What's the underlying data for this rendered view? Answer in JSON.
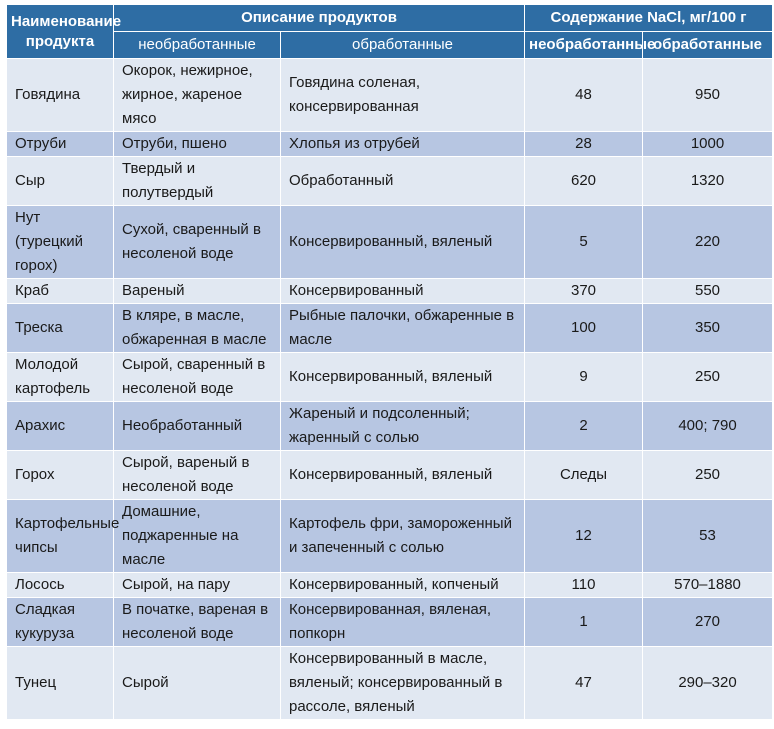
{
  "header": {
    "name": "Наименование продукта",
    "description": "Описание продуктов",
    "nacl": "Содержание NaCl, мг/100 г",
    "raw": "необработанные",
    "processed": "обработанные"
  },
  "rows": [
    {
      "name": "Говядина",
      "raw": "Окорок, нежирное, жирное, жареное мясо",
      "processed": "Говядина соленая, консервированная",
      "nacl_raw": "48",
      "nacl_processed": "950"
    },
    {
      "name": "Отруби",
      "raw": "Отруби, пшено",
      "processed": "Хлопья из отрубей",
      "nacl_raw": "28",
      "nacl_processed": "1000"
    },
    {
      "name": "Сыр",
      "raw": "Твердый и полутвердый",
      "processed": "Обработанный",
      "nacl_raw": "620",
      "nacl_processed": "1320"
    },
    {
      "name": "Нут (турецкий горох)",
      "raw": "Сухой, сваренный в несоленой воде",
      "processed": "Консервированный, вяленый",
      "nacl_raw": "5",
      "nacl_processed": "220"
    },
    {
      "name": "Краб",
      "raw": "Вареный",
      "processed": "Консервированный",
      "nacl_raw": "370",
      "nacl_processed": "550"
    },
    {
      "name": "Треска",
      "raw": "В кляре, в масле, обжаренная в масле",
      "processed": "Рыбные палочки, обжаренные в масле",
      "nacl_raw": "100",
      "nacl_processed": "350"
    },
    {
      "name": "Молодой картофель",
      "raw": "Сырой, сваренный в несоленой воде",
      "processed": "Консервированный, вяленый",
      "nacl_raw": "9",
      "nacl_processed": "250"
    },
    {
      "name": "Арахис",
      "raw": "Необработанный",
      "processed": "Жареный и подсоленный; жаренный с солью",
      "nacl_raw": "2",
      "nacl_processed": "400; 790"
    },
    {
      "name": "Горох",
      "raw": "Сырой, вареный в несоленой воде",
      "processed": "Консервированный, вяленый",
      "nacl_raw": "Следы",
      "nacl_processed": "250"
    },
    {
      "name": "Картофельные чипсы",
      "raw": "Домашние, поджаренные на масле",
      "processed": "Картофель фри, замороженный и запеченный с солью",
      "nacl_raw": "12",
      "nacl_processed": "53"
    },
    {
      "name": "Лосось",
      "raw": "Сырой, на пару",
      "processed": "Консервированный, копченый",
      "nacl_raw": "110",
      "nacl_processed": "570–1880"
    },
    {
      "name": "Сладкая кукуруза",
      "raw": "В початке, вареная в несоленой воде",
      "processed": "Консервированная, вяленая, попкорн",
      "nacl_raw": "1",
      "nacl_processed": "270"
    },
    {
      "name": "Тунец",
      "raw": "Сырой",
      "processed": "Консервированный в масле, вяленый; консервированный в рассоле, вяленый",
      "nacl_raw": "47",
      "nacl_processed": "290–320"
    }
  ]
}
